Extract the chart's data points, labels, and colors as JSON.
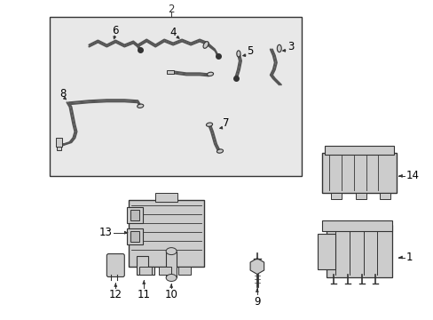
{
  "bg_color": "#ffffff",
  "box_bg": "#e8e8e8",
  "line_color": "#333333",
  "label_color": "#000000",
  "fig_width": 4.89,
  "fig_height": 3.6,
  "dpi": 100,
  "label_fontsize": 8.5,
  "wire_color": "#555555",
  "part_face": "#cccccc",
  "part_edge": "#333333"
}
